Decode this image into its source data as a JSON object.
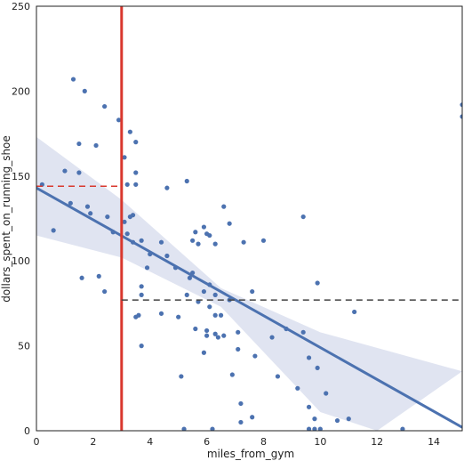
{
  "chart_data": {
    "type": "scatter",
    "xlabel": "miles_from_gym",
    "ylabel": "dollars_spent_on_running_shoe",
    "xlim": [
      0,
      15
    ],
    "ylim": [
      0,
      250
    ],
    "xticks": [
      0,
      2,
      4,
      6,
      8,
      10,
      12,
      14
    ],
    "yticks": [
      0,
      50,
      100,
      150,
      200,
      250
    ],
    "grid": false,
    "colors": {
      "points": "#4c72b0",
      "regression_line": "#4c72b0",
      "confidence_band": "#dde1f0",
      "vertical_marker": "#d9382e",
      "upper_dashed": "#d9382e",
      "lower_dashed": "#444444"
    },
    "regression": {
      "x": [
        0,
        15
      ],
      "y": [
        143,
        2
      ]
    },
    "confidence_band": {
      "upper": [
        [
          0,
          173
        ],
        [
          3,
          136
        ],
        [
          6.5,
          84
        ],
        [
          10,
          58
        ],
        [
          15,
          35
        ]
      ],
      "lower": [
        [
          0,
          115
        ],
        [
          3,
          102
        ],
        [
          6.5,
          73
        ],
        [
          10,
          11
        ],
        [
          12,
          0
        ]
      ]
    },
    "reference_lines": [
      {
        "kind": "vertical",
        "x": 3,
        "ylim": [
          0,
          250
        ],
        "style": "solid",
        "color": "#d9382e"
      },
      {
        "kind": "horizontal",
        "y": 144,
        "xlim": [
          0,
          3
        ],
        "style": "dashed",
        "color": "#d9382e"
      },
      {
        "kind": "horizontal",
        "y": 77,
        "xlim": [
          3,
          15
        ],
        "style": "dashed",
        "color": "#444444"
      }
    ],
    "points": [
      [
        1.3,
        207
      ],
      [
        1.7,
        200
      ],
      [
        2.4,
        191
      ],
      [
        2.9,
        183
      ],
      [
        1.5,
        169
      ],
      [
        2.1,
        168
      ],
      [
        1.0,
        153
      ],
      [
        1.5,
        152
      ],
      [
        0.2,
        145
      ],
      [
        0.6,
        118
      ],
      [
        1.2,
        134
      ],
      [
        1.8,
        132
      ],
      [
        1.9,
        128
      ],
      [
        2.5,
        126
      ],
      [
        2.7,
        117
      ],
      [
        1.6,
        90
      ],
      [
        2.2,
        91
      ],
      [
        2.4,
        82
      ],
      [
        3.1,
        161
      ],
      [
        3.3,
        176
      ],
      [
        3.5,
        170
      ],
      [
        3.5,
        152
      ],
      [
        3.2,
        145
      ],
      [
        3.5,
        145
      ],
      [
        4.6,
        143
      ],
      [
        5.3,
        147
      ],
      [
        3.3,
        126
      ],
      [
        3.4,
        127
      ],
      [
        3.1,
        123
      ],
      [
        3.2,
        116
      ],
      [
        3.4,
        111
      ],
      [
        3.7,
        112
      ],
      [
        4.4,
        111
      ],
      [
        4.0,
        104
      ],
      [
        4.6,
        103
      ],
      [
        3.9,
        96
      ],
      [
        3.7,
        85
      ],
      [
        3.7,
        80
      ],
      [
        3.6,
        68
      ],
      [
        3.5,
        67
      ],
      [
        3.7,
        50
      ],
      [
        4.4,
        69
      ],
      [
        4.9,
        96
      ],
      [
        5.4,
        90
      ],
      [
        5.5,
        93
      ],
      [
        5.7,
        110
      ],
      [
        5.6,
        117
      ],
      [
        5.5,
        112
      ],
      [
        6.0,
        116
      ],
      [
        6.3,
        110
      ],
      [
        6.1,
        115
      ],
      [
        5.9,
        120
      ],
      [
        6.1,
        86
      ],
      [
        5.9,
        82
      ],
      [
        6.3,
        80
      ],
      [
        5.7,
        76
      ],
      [
        5.3,
        80
      ],
      [
        5.0,
        67
      ],
      [
        5.6,
        60
      ],
      [
        6.0,
        59
      ],
      [
        6.0,
        56
      ],
      [
        6.3,
        57
      ],
      [
        6.4,
        55
      ],
      [
        6.1,
        73
      ],
      [
        6.3,
        68
      ],
      [
        5.9,
        46
      ],
      [
        5.1,
        32
      ],
      [
        6.8,
        122
      ],
      [
        6.6,
        132
      ],
      [
        7.3,
        111
      ],
      [
        8.0,
        112
      ],
      [
        7.6,
        82
      ],
      [
        6.5,
        68
      ],
      [
        6.6,
        56
      ],
      [
        7.1,
        58
      ],
      [
        7.1,
        48
      ],
      [
        6.9,
        33
      ],
      [
        7.7,
        44
      ],
      [
        6.8,
        77
      ],
      [
        8.3,
        55
      ],
      [
        8.8,
        60
      ],
      [
        7.2,
        16
      ],
      [
        7.6,
        8
      ],
      [
        7.2,
        5
      ],
      [
        6.2,
        1
      ],
      [
        5.2,
        1
      ],
      [
        9.4,
        126
      ],
      [
        9.9,
        87
      ],
      [
        9.4,
        58
      ],
      [
        9.9,
        37
      ],
      [
        9.6,
        43
      ],
      [
        9.6,
        14
      ],
      [
        9.2,
        25
      ],
      [
        8.5,
        32
      ],
      [
        9.8,
        7
      ],
      [
        9.8,
        1
      ],
      [
        10.0,
        1
      ],
      [
        10.2,
        22
      ],
      [
        9.6,
        1
      ],
      [
        10.6,
        6
      ],
      [
        11.2,
        70
      ],
      [
        11.0,
        7
      ],
      [
        12.9,
        1
      ],
      [
        15.0,
        192
      ],
      [
        15.0,
        185
      ]
    ]
  }
}
